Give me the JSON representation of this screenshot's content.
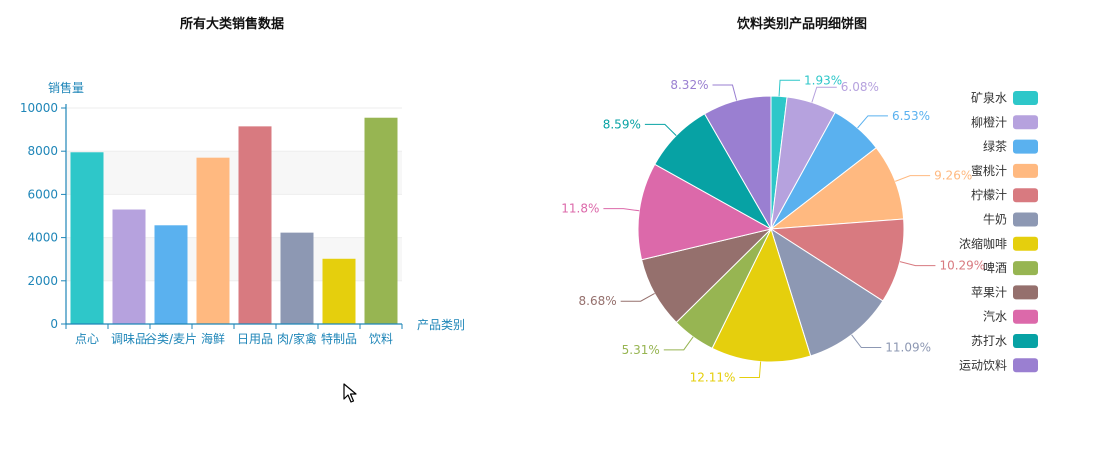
{
  "chart_data": [
    {
      "type": "bar",
      "title": "所有大类销售数据",
      "ylabel": "销售量",
      "xlabel": "产品类别",
      "ylim": [
        0,
        10000
      ],
      "yticks": [
        0,
        2000,
        4000,
        6000,
        8000,
        10000
      ],
      "grid": true,
      "categories": [
        "点心",
        "调味品",
        "谷类/麦片",
        "海鲜",
        "日用品",
        "肉/家禽",
        "特制品",
        "饮料"
      ],
      "values": [
        7950,
        5300,
        4570,
        7700,
        9150,
        4230,
        3020,
        9550
      ],
      "colors": [
        "#2ec7c9",
        "#b6a2de",
        "#5ab1ef",
        "#ffb980",
        "#d87a80",
        "#8d98b3",
        "#e5cf0d",
        "#97b552"
      ]
    },
    {
      "type": "pie",
      "title": "饮料类别产品明细饼图",
      "legend_position": "right",
      "labels": [
        "矿泉水",
        "柳橙汁",
        "绿茶",
        "蜜桃汁",
        "柠檬汁",
        "牛奶",
        "浓缩咖啡",
        "啤酒",
        "苹果汁",
        "汽水",
        "苏打水",
        "运动饮料"
      ],
      "values": [
        1.93,
        6.08,
        6.53,
        9.26,
        10.29,
        11.09,
        12.11,
        5.31,
        8.68,
        11.8,
        8.59,
        8.32
      ],
      "value_labels": [
        "1.93%",
        "6.08%",
        "6.53%",
        "9.26%",
        "10.29%",
        "11.09%",
        "12.11%",
        "5.31%",
        "8.68%",
        "11.8%",
        "8.59%",
        "8.32%"
      ],
      "colors": [
        "#2ec7c9",
        "#b6a2de",
        "#5ab1ef",
        "#ffb980",
        "#d87a80",
        "#8d98b3",
        "#e5cf0d",
        "#97b552",
        "#95706d",
        "#dc69aa",
        "#07a2a4",
        "#9a7fd1"
      ]
    }
  ]
}
